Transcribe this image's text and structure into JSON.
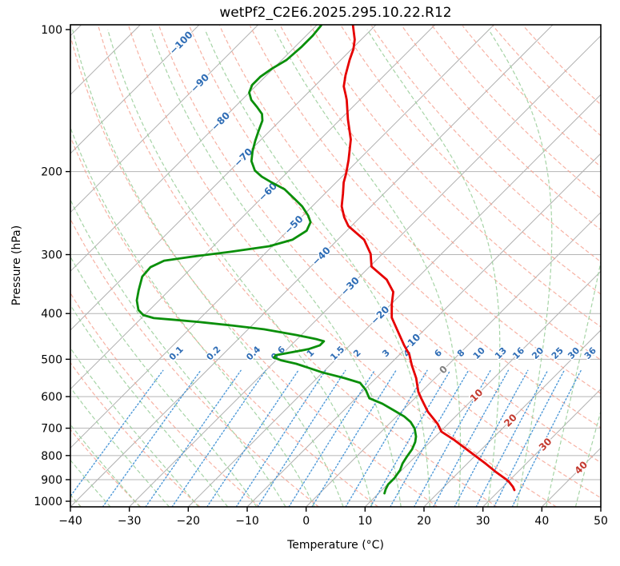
{
  "title": "wetPf2_C2E6.2025.295.10.22.R12",
  "axes": {
    "x": {
      "label": "Temperature (°C)",
      "ticks": [
        -40,
        -30,
        -20,
        -10,
        0,
        10,
        20,
        30,
        40,
        50
      ]
    },
    "y": {
      "label": "Pressure (hPa)",
      "ticks": [
        100,
        200,
        300,
        400,
        500,
        600,
        700,
        800,
        900,
        1000
      ]
    }
  },
  "chart_data": {
    "type": "line",
    "subtype": "skewt-logp",
    "title": "wetPf2_C2E6.2025.295.10.22.R12",
    "xlabel": "Temperature (°C)",
    "ylabel": "Pressure (hPa)",
    "xlim": [
      -40,
      50
    ],
    "ylim_hpa": [
      1028,
      97.7
    ],
    "skew_deg": 45,
    "grid": {
      "isobars_hpa": [
        200,
        300,
        400,
        500,
        600,
        700,
        800,
        900,
        1000
      ],
      "isotherms_c": {
        "min": -120,
        "max": 50,
        "step": 10
      },
      "dry_adiabats_c": {
        "min": -40,
        "max": 170,
        "step": 10
      },
      "moist_adiabats_c": {
        "min": -40,
        "max": 55,
        "step": 5
      },
      "mixing_ratio_top_hpa": 525
    },
    "isotherm_labels": [
      -100,
      -90,
      -80,
      -70,
      -60,
      -50,
      -40,
      -30,
      -20,
      -10,
      0,
      10,
      20,
      30,
      40
    ],
    "mixing_ratio_labels": [
      0.1,
      0.2,
      0.4,
      0.6,
      1,
      1.5,
      2,
      3,
      4,
      6,
      8,
      10,
      13,
      16,
      20,
      25,
      30,
      36
    ],
    "series": [
      {
        "name": "temperature",
        "color_key": "temperature",
        "points_p_t": [
          [
            98,
            -73.8
          ],
          [
            105,
            -71.1
          ],
          [
            110,
            -69.7
          ],
          [
            116,
            -68.5
          ],
          [
            125,
            -66.6
          ],
          [
            132,
            -65.0
          ],
          [
            138,
            -63.1
          ],
          [
            141,
            -62.2
          ],
          [
            155,
            -58.7
          ],
          [
            171,
            -54.8
          ],
          [
            189,
            -51.7
          ],
          [
            202,
            -49.8
          ],
          [
            211,
            -48.7
          ],
          [
            223,
            -46.9
          ],
          [
            237,
            -45.0
          ],
          [
            250,
            -42.7
          ],
          [
            261,
            -40.5
          ],
          [
            279,
            -35.5
          ],
          [
            299,
            -32.0
          ],
          [
            318,
            -29.7
          ],
          [
            339,
            -24.9
          ],
          [
            360,
            -21.7
          ],
          [
            382,
            -19.9
          ],
          [
            408,
            -17.6
          ],
          [
            434,
            -14.5
          ],
          [
            467,
            -10.8
          ],
          [
            488,
            -8.4
          ],
          [
            515,
            -6.1
          ],
          [
            548,
            -3.2
          ],
          [
            586,
            -0.5
          ],
          [
            605,
            1.1
          ],
          [
            646,
            4.5
          ],
          [
            685,
            8.2
          ],
          [
            712,
            10.2
          ],
          [
            740,
            13.6
          ],
          [
            785,
            18.4
          ],
          [
            832,
            23.1
          ],
          [
            866,
            26.2
          ],
          [
            900,
            29.4
          ],
          [
            910,
            30.2
          ],
          [
            932,
            31.7
          ],
          [
            947,
            32.5
          ]
        ]
      },
      {
        "name": "dewpoint",
        "color_key": "dewpoint",
        "points_p_t": [
          [
            98,
            -79.2
          ],
          [
            103,
            -78.9
          ],
          [
            109,
            -78.9
          ],
          [
            116,
            -79.2
          ],
          [
            121,
            -80.2
          ],
          [
            126,
            -80.8
          ],
          [
            131,
            -80.8
          ],
          [
            136,
            -80.0
          ],
          [
            141,
            -78.4
          ],
          [
            146,
            -76.2
          ],
          [
            151,
            -74.2
          ],
          [
            156,
            -73.0
          ],
          [
            164,
            -71.9
          ],
          [
            172,
            -70.8
          ],
          [
            181,
            -69.5
          ],
          [
            190,
            -68.0
          ],
          [
            199,
            -65.8
          ],
          [
            205,
            -63.6
          ],
          [
            211,
            -60.9
          ],
          [
            218,
            -57.6
          ],
          [
            228,
            -54.4
          ],
          [
            237,
            -51.7
          ],
          [
            248,
            -49.1
          ],
          [
            256,
            -47.6
          ],
          [
            267,
            -46.8
          ],
          [
            279,
            -47.7
          ],
          [
            288,
            -50.5
          ],
          [
            296,
            -56.3
          ],
          [
            303,
            -61.9
          ],
          [
            309,
            -65.9
          ],
          [
            319,
            -67.1
          ],
          [
            334,
            -66.9
          ],
          [
            357,
            -65.2
          ],
          [
            375,
            -63.8
          ],
          [
            393,
            -61.9
          ],
          [
            403,
            -60.2
          ],
          [
            409,
            -57.9
          ],
          [
            412,
            -54.5
          ],
          [
            417,
            -49.4
          ],
          [
            424,
            -43.4
          ],
          [
            432,
            -37.3
          ],
          [
            444,
            -30.9
          ],
          [
            453,
            -26.8
          ],
          [
            458,
            -25.1
          ],
          [
            467,
            -25.1
          ],
          [
            476,
            -26.4
          ],
          [
            484,
            -29.0
          ],
          [
            490,
            -30.9
          ],
          [
            496,
            -30.8
          ],
          [
            503,
            -29.0
          ],
          [
            511,
            -26.0
          ],
          [
            533,
            -20.1
          ],
          [
            548,
            -15.4
          ],
          [
            561,
            -11.9
          ],
          [
            581,
            -9.7
          ],
          [
            605,
            -7.7
          ],
          [
            621,
            -4.6
          ],
          [
            641,
            -1.6
          ],
          [
            661,
            1.3
          ],
          [
            679,
            3.3
          ],
          [
            701,
            5.1
          ],
          [
            729,
            6.7
          ],
          [
            749,
            7.5
          ],
          [
            776,
            8.2
          ],
          [
            807,
            8.6
          ],
          [
            832,
            9.0
          ],
          [
            859,
            9.7
          ],
          [
            893,
            10.1
          ],
          [
            921,
            10.1
          ],
          [
            943,
            10.5
          ],
          [
            962,
            11.0
          ]
        ]
      }
    ],
    "colors": {
      "temperature": "#e60000",
      "dewpoint": "#0a8f0a",
      "isobar": "#b4b4b4",
      "isotherm": "#b0b0b0",
      "dry_adiabat": "#f59f8d",
      "moist_adiabat": "#9ccf9c",
      "mixing_ratio": "#4494d6",
      "label_negative": "#2f6db5",
      "label_zero": "#7f7f7f",
      "label_positive": "#c33a2f",
      "frame": "#000000"
    }
  }
}
